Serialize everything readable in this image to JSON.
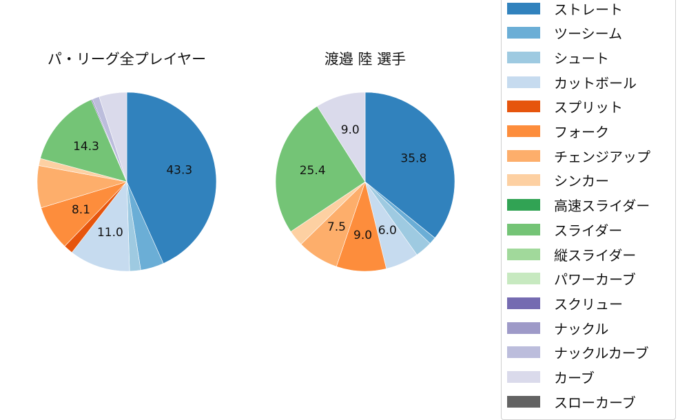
{
  "chart_data": [
    {
      "type": "pie",
      "title": "パ・リーグ全プレイヤー",
      "center": [
        184,
        264
      ],
      "radius": 130,
      "start_angle": 90,
      "direction": "clockwise",
      "slices": [
        {
          "label": "ストレート",
          "value": 43.3,
          "shown": "43.3"
        },
        {
          "label": "ツーシーム",
          "value": 4.2
        },
        {
          "label": "シュート",
          "value": 2.0
        },
        {
          "label": "カットボール",
          "value": 11.0,
          "shown": "11.0"
        },
        {
          "label": "スプリット",
          "value": 1.7
        },
        {
          "label": "フォーク",
          "value": 8.1,
          "shown": "8.1"
        },
        {
          "label": "チェンジアップ",
          "value": 7.6
        },
        {
          "label": "シンカー",
          "value": 1.3
        },
        {
          "label": "スライダー",
          "value": 14.3,
          "shown": "14.3"
        },
        {
          "label": "スクリュー",
          "value": 0.2
        },
        {
          "label": "ナックルカーブ",
          "value": 1.3
        },
        {
          "label": "カーブ",
          "value": 5.0
        }
      ]
    },
    {
      "type": "pie",
      "title": "渡邉 陸  選手",
      "center": [
        530,
        264
      ],
      "radius": 130,
      "start_angle": 90,
      "direction": "clockwise",
      "slices": [
        {
          "label": "ストレート",
          "value": 35.8,
          "shown": "35.8"
        },
        {
          "label": "ツーシーム",
          "value": 1.3
        },
        {
          "label": "シュート",
          "value": 3.1
        },
        {
          "label": "カットボール",
          "value": 6.0,
          "shown": "6.0"
        },
        {
          "label": "フォーク",
          "value": 9.0,
          "shown": "9.0"
        },
        {
          "label": "チェンジアップ",
          "value": 7.5,
          "shown": "7.5"
        },
        {
          "label": "シンカー",
          "value": 2.9
        },
        {
          "label": "スライダー",
          "value": 25.4,
          "shown": "25.4"
        },
        {
          "label": "カーブ",
          "value": 9.0,
          "shown": "9.0"
        }
      ]
    }
  ],
  "legend": {
    "items": [
      {
        "label": "ストレート",
        "color": "#3182bd"
      },
      {
        "label": "ツーシーム",
        "color": "#6baed6"
      },
      {
        "label": "シュート",
        "color": "#9ecae1"
      },
      {
        "label": "カットボール",
        "color": "#c6dbef"
      },
      {
        "label": "スプリット",
        "color": "#e6550d"
      },
      {
        "label": "フォーク",
        "color": "#fd8d3c"
      },
      {
        "label": "チェンジアップ",
        "color": "#fdae6b"
      },
      {
        "label": "シンカー",
        "color": "#fdd0a2"
      },
      {
        "label": "高速スライダー",
        "color": "#31a354"
      },
      {
        "label": "スライダー",
        "color": "#74c476"
      },
      {
        "label": "縦スライダー",
        "color": "#a1d99b"
      },
      {
        "label": "パワーカーブ",
        "color": "#c7e9c0"
      },
      {
        "label": "スクリュー",
        "color": "#756bb1"
      },
      {
        "label": "ナックル",
        "color": "#9e9ac8"
      },
      {
        "label": "ナックルカーブ",
        "color": "#bcbddc"
      },
      {
        "label": "カーブ",
        "color": "#dadaeb"
      },
      {
        "label": "スローカーブ",
        "color": "#636363"
      }
    ]
  }
}
